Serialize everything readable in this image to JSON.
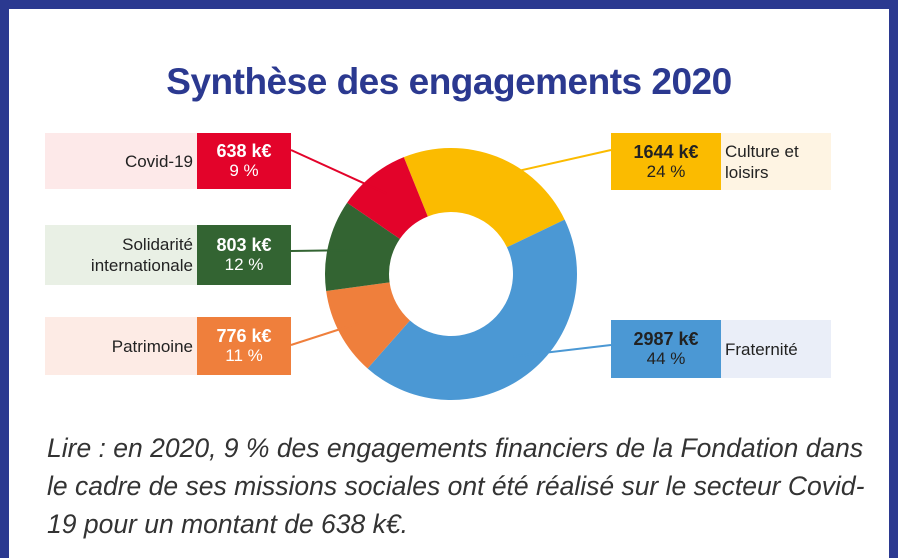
{
  "chart_data": {
    "type": "donut",
    "title": "Synthèse des engagements 2020",
    "categories": [
      "Culture et loisirs",
      "Fraternité",
      "Patrimoine",
      "Solidarité internationale",
      "Covid-19"
    ],
    "values": [
      1644,
      2987,
      776,
      803,
      638
    ],
    "value_labels": [
      "1644 k€",
      "2987 k€",
      "776 k€",
      "803 k€",
      "638 k€"
    ],
    "percents": [
      24,
      44,
      11,
      12,
      9
    ],
    "percent_labels": [
      "24 %",
      "44 %",
      "11 %",
      "12 %",
      "9 %"
    ],
    "colors": [
      "#fbbb00",
      "#4b98d4",
      "#ef7f3c",
      "#336432",
      "#e3032a"
    ],
    "note": "Lire : en 2020, 9 % des engagements financiers de la Fondation dans le cadre de ses missions sociales ont été réalisé sur le secteur Covid-19 pour un montant de 638 k€."
  }
}
